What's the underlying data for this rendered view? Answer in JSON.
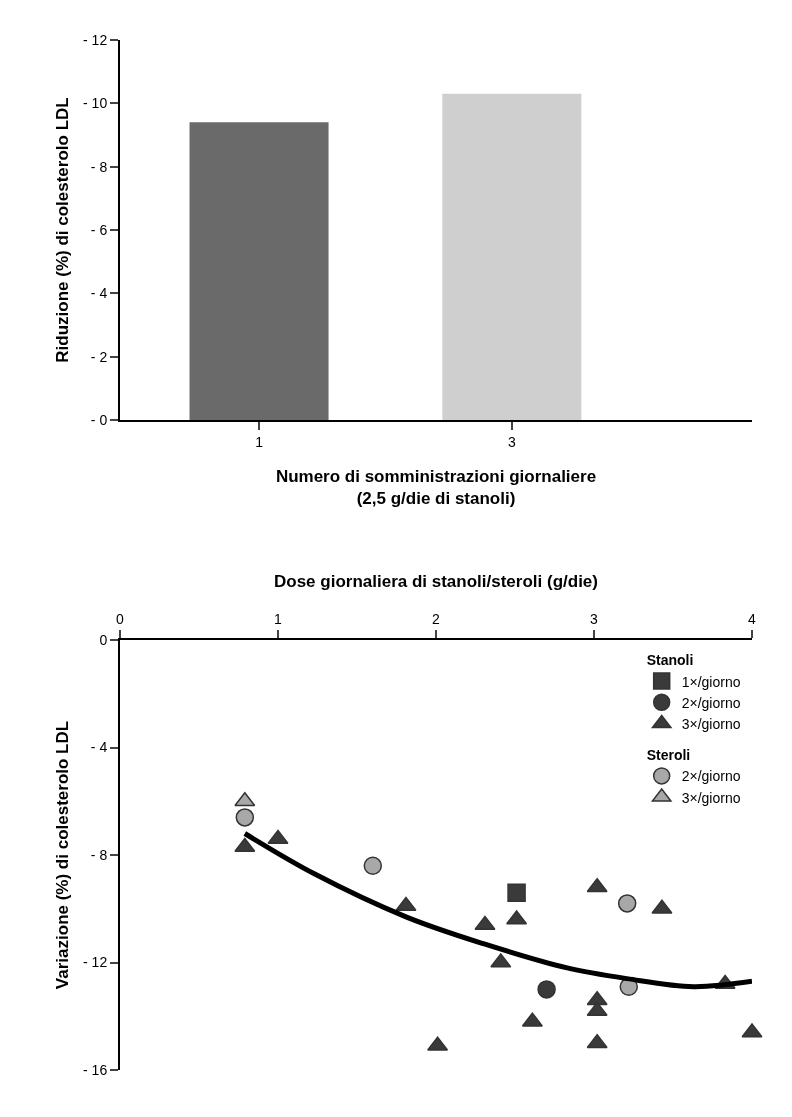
{
  "chart_data": [
    {
      "type": "bar",
      "ylabel": "Riduzione (%) di colesterolo LDL",
      "xlabel": "Numero di somministrazioni giornaliere\n(2,5 g/die di stanoli)",
      "categories": [
        "1",
        "3"
      ],
      "values": [
        -9.4,
        -10.3
      ],
      "colors": [
        "#6a6a6a",
        "#cfcfcf"
      ],
      "ylim": [
        0,
        -12
      ],
      "yticks": [
        {
          "value": 0,
          "label": "- 0"
        },
        {
          "value": -2,
          "label": "- 2"
        },
        {
          "value": -4,
          "label": "- 4"
        },
        {
          "value": -6,
          "label": "- 6"
        },
        {
          "value": -8,
          "label": "- 8"
        },
        {
          "value": -10,
          "label": "- 10"
        },
        {
          "value": -12,
          "label": "- 12"
        }
      ],
      "grid": false,
      "legend": false
    },
    {
      "type": "scatter",
      "xlabel": "Dose giornaliera di stanoli/steroli (g/die)",
      "ylabel": "Variazione (%) di colesterolo LDL",
      "xlim": [
        0,
        4
      ],
      "xticks": [
        0,
        1,
        2,
        3,
        4
      ],
      "ylim": [
        -16,
        0
      ],
      "yticks": [
        0,
        {
          "value": -4,
          "label": "- 4"
        },
        {
          "value": -8,
          "label": "- 8"
        },
        {
          "value": -12,
          "label": "- 12"
        },
        {
          "value": -16,
          "label": "- 16"
        }
      ],
      "grid": false,
      "legend": "top right",
      "annotations": [
        "Stanoli",
        "Steroli"
      ],
      "series": [
        {
          "name": "1×/giorno",
          "color": "#3a3a3a",
          "marker": "square",
          "x": [
            2.51
          ],
          "values": [
            -9.4
          ]
        },
        {
          "name": "2×/giorno",
          "color": "#3a3a3a",
          "marker": "circle",
          "x": [
            2.7
          ],
          "values": [
            -13.0
          ]
        },
        {
          "name": "3×/giorno",
          "color": "#3a3a3a",
          "marker": "triangle",
          "x": [
            0.79,
            1.0,
            1.81,
            2.31,
            2.51,
            2.41,
            3.02,
            3.43,
            2.61,
            3.02,
            3.02,
            2.01,
            3.02,
            3.83,
            4.0
          ],
          "values": [
            -7.7,
            -7.4,
            -9.9,
            -10.6,
            -10.4,
            -12.0,
            -9.2,
            -10.0,
            -14.2,
            -13.4,
            -13.8,
            -15.1,
            -15.0,
            -12.8,
            -14.6
          ]
        },
        {
          "name": "2×/giorno",
          "color": "#a8a8a8",
          "marker": "circle",
          "x": [
            0.79,
            1.6,
            3.21,
            3.22
          ],
          "values": [
            -6.6,
            -8.4,
            -9.8,
            -12.9
          ]
        },
        {
          "name": "3×/giorno",
          "color": "#a8a8a8",
          "marker": "triangle",
          "x": [
            0.79
          ],
          "values": [
            -6.0
          ]
        },
        {
          "type": "line",
          "color": "#000000",
          "marker": "none",
          "x": [
            0.79,
            1.23,
            1.81,
            2.3,
            2.83,
            3.21,
            3.63,
            4.0
          ],
          "values": [
            -7.2,
            -8.7,
            -10.3,
            -11.3,
            -12.2,
            -12.6,
            -12.9,
            -12.7
          ]
        }
      ]
    }
  ]
}
